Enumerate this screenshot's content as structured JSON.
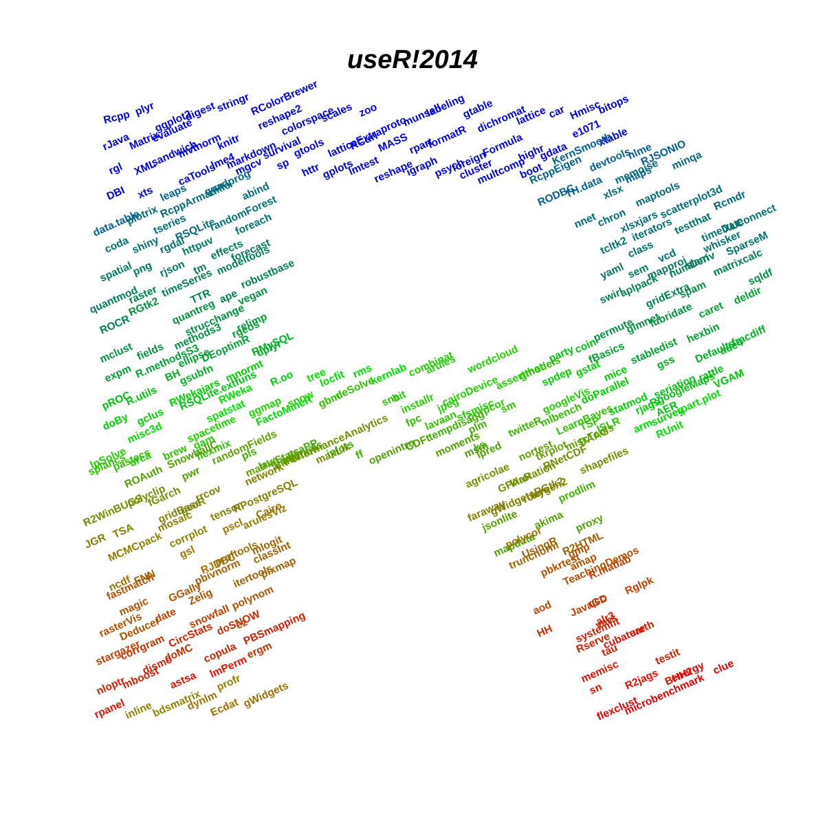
{
  "title": "useR!2014",
  "colors": {
    "blue": "#0000dd",
    "teal": "#007070",
    "green": "#00e000",
    "olive": "#808000",
    "brown": "#b05000",
    "red": "#e00000"
  },
  "words": [
    {
      "t": "Rcpp",
      "c": "#0000dd"
    },
    {
      "t": "plyr",
      "c": "#0000dd"
    },
    {
      "t": "ggplot2",
      "c": "#0000dd"
    },
    {
      "t": "digest",
      "c": "#0000dd"
    },
    {
      "t": "stringr",
      "c": "#0000dd"
    },
    {
      "t": "RColorBrewer",
      "c": "#0000dd"
    },
    {
      "t": "rJava",
      "c": "#0000dd"
    },
    {
      "t": "Matrix",
      "c": "#0000dd"
    },
    {
      "t": "evaluate",
      "c": "#0000dd"
    },
    {
      "t": "mvtnorm",
      "c": "#0000dd"
    },
    {
      "t": "knitr",
      "c": "#0000dd"
    },
    {
      "t": "reshape2",
      "c": "#0000dd"
    },
    {
      "t": "rgl",
      "c": "#0000dd"
    },
    {
      "t": "XML",
      "c": "#0000dd"
    },
    {
      "t": "sandwich",
      "c": "#0000dd"
    },
    {
      "t": "markdown",
      "c": "#0000dd"
    },
    {
      "t": "colorspace",
      "c": "#0000dd"
    },
    {
      "t": "scales",
      "c": "#0000dd"
    },
    {
      "t": "zoo",
      "c": "#0000dd"
    },
    {
      "t": "DBI",
      "c": "#0000dd"
    },
    {
      "t": "xts",
      "c": "#0000dd"
    },
    {
      "t": "caTools",
      "c": "#0000dd"
    },
    {
      "t": "lme4",
      "c": "#0000dd"
    },
    {
      "t": "survival",
      "c": "#0000dd"
    },
    {
      "t": "gtools",
      "c": "#0000dd"
    },
    {
      "t": "latticeExtra",
      "c": "#0000dd"
    },
    {
      "t": "RCurl",
      "c": "#0000dd"
    },
    {
      "t": "proto",
      "c": "#0000dd"
    },
    {
      "t": "munsell",
      "c": "#0000dd"
    },
    {
      "t": "labeling",
      "c": "#0000dd"
    },
    {
      "t": "gtable",
      "c": "#0000dd"
    },
    {
      "t": "dichromat",
      "c": "#0000dd"
    },
    {
      "t": "lattice",
      "c": "#0000dd"
    },
    {
      "t": "car",
      "c": "#0000dd"
    },
    {
      "t": "Hmisc",
      "c": "#0000dd"
    },
    {
      "t": "bitops",
      "c": "#0000dd"
    },
    {
      "t": "mgcv",
      "c": "#0000dd"
    },
    {
      "t": "sp",
      "c": "#0000dd"
    },
    {
      "t": "httr",
      "c": "#0000dd"
    },
    {
      "t": "gplots",
      "c": "#0000dd"
    },
    {
      "t": "lmtest",
      "c": "#0000dd"
    },
    {
      "t": "MASS",
      "c": "#0000dd"
    },
    {
      "t": "rpart",
      "c": "#0000dd"
    },
    {
      "t": "reshape",
      "c": "#0000dd"
    },
    {
      "t": "formatR",
      "c": "#0000dd"
    },
    {
      "t": "igraph",
      "c": "#0000dd"
    },
    {
      "t": "foreign",
      "c": "#0000dd"
    },
    {
      "t": "psych",
      "c": "#0000dd"
    },
    {
      "t": "Formula",
      "c": "#0000dd"
    },
    {
      "t": "cluster",
      "c": "#0000dd"
    },
    {
      "t": "highr",
      "c": "#0000dd"
    },
    {
      "t": "multcomp",
      "c": "#0000dd"
    },
    {
      "t": "gdata",
      "c": "#0000dd"
    },
    {
      "t": "e1071",
      "c": "#0000dd"
    },
    {
      "t": "boot",
      "c": "#0000dd"
    },
    {
      "t": "xtable",
      "c": "#0000dd"
    },
    {
      "t": "RcppEigen",
      "c": "#005f8f"
    },
    {
      "t": "KernSmooth",
      "c": "#005f8f"
    },
    {
      "t": "nlme",
      "c": "#005f8f"
    },
    {
      "t": "RODBC",
      "c": "#005f8f"
    },
    {
      "t": "devtools",
      "c": "#005f8f"
    },
    {
      "t": "TH.data",
      "c": "#005f8f"
    },
    {
      "t": "maps",
      "c": "#005f8f"
    },
    {
      "t": "RJSONIO",
      "c": "#005f8f"
    },
    {
      "t": "xlsx",
      "c": "#006a7a"
    },
    {
      "t": "memoise",
      "c": "#006a7a"
    },
    {
      "t": "minqa",
      "c": "#006a7a"
    },
    {
      "t": "nnet",
      "c": "#006a7a"
    },
    {
      "t": "chron",
      "c": "#006a7a"
    },
    {
      "t": "maptools",
      "c": "#006a7a"
    },
    {
      "t": "scatterplot3d",
      "c": "#006a7a"
    },
    {
      "t": "xlsxjars",
      "c": "#006a7a"
    },
    {
      "t": "Rcmdr",
      "c": "#006a7a"
    },
    {
      "t": "tcltk2",
      "c": "#007070"
    },
    {
      "t": "iterators",
      "c": "#007070"
    },
    {
      "t": "testthat",
      "c": "#007070"
    },
    {
      "t": "timeDate",
      "c": "#007070"
    },
    {
      "t": "XLConnect",
      "c": "#007070"
    },
    {
      "t": "class",
      "c": "#007070"
    },
    {
      "t": "vcd",
      "c": "#007070"
    },
    {
      "t": "slam",
      "c": "#007070"
    },
    {
      "t": "whisker",
      "c": "#007070"
    },
    {
      "t": "SparseM",
      "c": "#007070"
    },
    {
      "t": "data.table",
      "c": "#005f8f"
    },
    {
      "t": "leaps",
      "c": "#005f8f"
    },
    {
      "t": "RcppArmadillo",
      "c": "#006a7a"
    },
    {
      "t": "quadprog",
      "c": "#006a7a"
    },
    {
      "t": "plotrix",
      "c": "#006a7a"
    },
    {
      "t": "tseries",
      "c": "#006a7a"
    },
    {
      "t": "RSQLite",
      "c": "#006a7a"
    },
    {
      "t": "abind",
      "c": "#006a7a"
    },
    {
      "t": "coda",
      "c": "#007070"
    },
    {
      "t": "shiny",
      "c": "#007070"
    },
    {
      "t": "rgdal",
      "c": "#007070"
    },
    {
      "t": "randomForest",
      "c": "#007070"
    },
    {
      "t": "foreach",
      "c": "#007070"
    },
    {
      "t": "spatial",
      "c": "#007a60"
    },
    {
      "t": "httpuv",
      "c": "#007a60"
    },
    {
      "t": "effects",
      "c": "#007a60"
    },
    {
      "t": "forecast",
      "c": "#007a60"
    },
    {
      "t": "png",
      "c": "#007a60"
    },
    {
      "t": "rjson",
      "c": "#007a60"
    },
    {
      "t": "quantmod",
      "c": "#007a60"
    },
    {
      "t": "tm",
      "c": "#008050"
    },
    {
      "t": "modeltools",
      "c": "#008050"
    },
    {
      "t": "raster",
      "c": "#008050"
    },
    {
      "t": "timeSeries",
      "c": "#008050"
    },
    {
      "t": "robustbase",
      "c": "#008050"
    },
    {
      "t": "ROCR",
      "c": "#008050"
    },
    {
      "t": "TTR",
      "c": "#008050"
    },
    {
      "t": "ape",
      "c": "#008050"
    },
    {
      "t": "RGtk2",
      "c": "#009040"
    },
    {
      "t": "quantreg",
      "c": "#009040"
    },
    {
      "t": "strucchange",
      "c": "#009040"
    },
    {
      "t": "vegan",
      "c": "#009040"
    },
    {
      "t": "mclust",
      "c": "#009040"
    },
    {
      "t": "fields",
      "c": "#009040"
    },
    {
      "t": "methods3",
      "c": "#009040"
    },
    {
      "t": "rgeos",
      "c": "#00a030"
    },
    {
      "t": "relimp",
      "c": "#00a030"
    },
    {
      "t": "expm",
      "c": "#00a030"
    },
    {
      "t": "R.methodsS3",
      "c": "#00a030"
    },
    {
      "t": "ellipse",
      "c": "#00a030"
    },
    {
      "t": "DEoptimR",
      "c": "#00a030"
    },
    {
      "t": "RMySQL",
      "c": "#00b020"
    },
    {
      "t": "BH",
      "c": "#00b020"
    },
    {
      "t": "gsubfn",
      "c": "#00b020"
    },
    {
      "t": "dplyr",
      "c": "#00b020"
    },
    {
      "t": "pROC",
      "c": "#00c010"
    },
    {
      "t": "R.utils",
      "c": "#00c010"
    },
    {
      "t": "RSQLite.extfuns",
      "c": "#00c010"
    },
    {
      "t": "yaml",
      "c": "#007a60"
    },
    {
      "t": "sem",
      "c": "#007a60"
    },
    {
      "t": "mapproj",
      "c": "#007a60"
    },
    {
      "t": "numDeriv",
      "c": "#008050"
    },
    {
      "t": "matrixcalc",
      "c": "#008050"
    },
    {
      "t": "swirl",
      "c": "#008050"
    },
    {
      "t": "aplpack",
      "c": "#008050"
    },
    {
      "t": "gridExtra",
      "c": "#008050"
    },
    {
      "t": "spam",
      "c": "#009040"
    },
    {
      "t": "sqldf",
      "c": "#009040"
    },
    {
      "t": "permute",
      "c": "#009040"
    },
    {
      "t": "glmnet",
      "c": "#009040"
    },
    {
      "t": "lubridate",
      "c": "#009040"
    },
    {
      "t": "caret",
      "c": "#00a030"
    },
    {
      "t": "deldir",
      "c": "#00a030"
    },
    {
      "t": "hexbin",
      "c": "#00a030"
    },
    {
      "t": "fBasics",
      "c": "#00a030"
    },
    {
      "t": "stabledist",
      "c": "#00a030"
    },
    {
      "t": "gss",
      "c": "#00b020"
    },
    {
      "t": "Defaults",
      "c": "#00b020"
    },
    {
      "t": "ade4",
      "c": "#00b020"
    },
    {
      "t": "fracdiff",
      "c": "#00b020"
    },
    {
      "t": "rattle",
      "c": "#00c010"
    },
    {
      "t": "VGAM",
      "c": "#00c010"
    },
    {
      "t": "seriation",
      "c": "#00c010"
    },
    {
      "t": "RgoogleMaps",
      "c": "#00c010"
    },
    {
      "t": "AER",
      "c": "#00c010"
    },
    {
      "t": "coin",
      "c": "#00c010"
    },
    {
      "t": "party",
      "c": "#00c010"
    },
    {
      "t": "gstat",
      "c": "#00d000"
    },
    {
      "t": "spdep",
      "c": "#00d000"
    },
    {
      "t": "mice",
      "c": "#00d000"
    },
    {
      "t": "doParallel",
      "c": "#00d000"
    },
    {
      "t": "statmod",
      "c": "#00d000"
    },
    {
      "t": "rjags",
      "c": "#00d000"
    },
    {
      "t": "survey",
      "c": "#00d000"
    },
    {
      "t": "rpart.plot",
      "c": "#00e000"
    },
    {
      "t": "arm",
      "c": "#00e000"
    },
    {
      "t": "RUnit",
      "c": "#00e000"
    },
    {
      "t": "doBy",
      "c": "#00d000"
    },
    {
      "t": "gclus",
      "c": "#00d000"
    },
    {
      "t": "RWekajars",
      "c": "#00d000"
    },
    {
      "t": "mnormt",
      "c": "#00d000"
    },
    {
      "t": "R.oo",
      "c": "#00d000"
    },
    {
      "t": "tree",
      "c": "#00e000"
    },
    {
      "t": "misc3d",
      "c": "#00e000"
    },
    {
      "t": "RWeka",
      "c": "#00e000"
    },
    {
      "t": "spatstat",
      "c": "#00e000"
    },
    {
      "t": "FactoMineR",
      "c": "#00e000"
    },
    {
      "t": "locfit",
      "c": "#00e000"
    },
    {
      "t": "rms",
      "c": "#00e000"
    },
    {
      "t": "kernlab",
      "c": "#00e000"
    },
    {
      "t": "combinat",
      "c": "#20d000"
    },
    {
      "t": "arules",
      "c": "#20d000"
    },
    {
      "t": "wordcloud",
      "c": "#20d000"
    },
    {
      "t": "assertthat",
      "c": "#20d000"
    },
    {
      "t": "bit",
      "c": "#20d000"
    },
    {
      "t": "installr",
      "c": "#20d000"
    },
    {
      "t": "jpeg",
      "c": "#20d000"
    },
    {
      "t": "cairoDevice",
      "c": "#20d000"
    },
    {
      "t": "sfsmisc",
      "c": "#20d000"
    },
    {
      "t": "gmodels",
      "c": "#30c000"
    },
    {
      "t": "corpcor",
      "c": "#30c000"
    },
    {
      "t": "sm",
      "c": "#30c000"
    },
    {
      "t": "googleVis",
      "c": "#20d000"
    },
    {
      "t": "lpSolve",
      "c": "#20d000"
    },
    {
      "t": "urca",
      "c": "#20d000"
    },
    {
      "t": "spacetime",
      "c": "#20d000"
    },
    {
      "t": "gam",
      "c": "#20d000"
    },
    {
      "t": "ggmap",
      "c": "#20d000"
    },
    {
      "t": "snow",
      "c": "#20d000"
    },
    {
      "t": "gbm",
      "c": "#30c000"
    },
    {
      "t": "deSolve",
      "c": "#30c000"
    },
    {
      "t": "sna",
      "c": "#30c000"
    },
    {
      "t": "fpc",
      "c": "#30c000"
    },
    {
      "t": "lavaan",
      "c": "#30c000"
    },
    {
      "t": "tempdisagg",
      "c": "#40b000"
    },
    {
      "t": "plm",
      "c": "#40b000"
    },
    {
      "t": "ks",
      "c": "#40b000"
    },
    {
      "t": "twitteR",
      "c": "#40b000"
    },
    {
      "t": "mlbench",
      "c": "#30c000"
    },
    {
      "t": "LearnBayes",
      "c": "#30c000"
    },
    {
      "t": "TSP",
      "c": "#30c000"
    },
    {
      "t": "ISLR",
      "c": "#30c000"
    },
    {
      "t": "splancs",
      "c": "#30c000"
    },
    {
      "t": "pastecs",
      "c": "#30c000"
    },
    {
      "t": "brew",
      "c": "#30c000"
    },
    {
      "t": "flexmix",
      "c": "#30c000"
    },
    {
      "t": "pls",
      "c": "#40b000"
    },
    {
      "t": "lava",
      "c": "#40b000"
    },
    {
      "t": "intervals",
      "c": "#40b000"
    },
    {
      "t": "pcaPP",
      "c": "#40b000"
    },
    {
      "t": "iplots",
      "c": "#40b000"
    },
    {
      "t": "ff",
      "c": "#40b000"
    },
    {
      "t": "openintro",
      "c": "#50a000"
    },
    {
      "t": "CDFt",
      "c": "#50a000"
    },
    {
      "t": "moments",
      "c": "#50a000"
    },
    {
      "t": "msm",
      "c": "#50a000"
    },
    {
      "t": "ipred",
      "c": "#50a000"
    },
    {
      "t": "nortest",
      "c": "#60a000"
    },
    {
      "t": "tkrplot",
      "c": "#60a000"
    },
    {
      "t": "miscTools",
      "c": "#60a000"
    },
    {
      "t": "DAAG",
      "c": "#60a000"
    },
    {
      "t": "agricolae",
      "c": "#709000"
    },
    {
      "t": "GPArotation",
      "c": "#709000"
    },
    {
      "t": "klaR",
      "c": "#709000"
    },
    {
      "t": "RNetCDF",
      "c": "#709000"
    },
    {
      "t": "shapefiles",
      "c": "#709000"
    },
    {
      "t": "faraway",
      "c": "#808000"
    },
    {
      "t": "gWidgetsRGtk2",
      "c": "#808000"
    },
    {
      "t": "roxygen2",
      "c": "#808000"
    },
    {
      "t": "lars",
      "c": "#808000"
    },
    {
      "t": "prodlim",
      "c": "#40b000"
    },
    {
      "t": "jsonlite",
      "c": "#50a000"
    },
    {
      "t": "mapdata",
      "c": "#50a000"
    },
    {
      "t": "akima",
      "c": "#50a000"
    },
    {
      "t": "proxy",
      "c": "#50a000"
    },
    {
      "t": "ROAuth",
      "c": "#50a000"
    },
    {
      "t": "SnowballC",
      "c": "#50a000"
    },
    {
      "t": "pwr",
      "c": "#50a000"
    },
    {
      "t": "randomFields",
      "c": "#60a000"
    },
    {
      "t": "matrixStats",
      "c": "#60a000"
    },
    {
      "t": "animation",
      "c": "#60a000"
    },
    {
      "t": "PerformanceAnalytics",
      "c": "#709000"
    },
    {
      "t": "maxLik",
      "c": "#709000"
    },
    {
      "t": "R2WinBUGS",
      "c": "#709000"
    },
    {
      "t": "polyclip",
      "c": "#709000"
    },
    {
      "t": "fGarch",
      "c": "#709000"
    },
    {
      "t": "geoR",
      "c": "#709000"
    },
    {
      "t": "network",
      "c": "#808000"
    },
    {
      "t": "JGR",
      "c": "#808000"
    },
    {
      "t": "TSA",
      "c": "#808000"
    },
    {
      "t": "gridBase",
      "c": "#808000"
    },
    {
      "t": "rrcov",
      "c": "#808000"
    },
    {
      "t": "tensor",
      "c": "#808000"
    },
    {
      "t": "RPostgreSQL",
      "c": "#808000"
    },
    {
      "t": "arulesViz",
      "c": "#908000"
    },
    {
      "t": "MCMCpack",
      "c": "#908000"
    },
    {
      "t": "mosaic",
      "c": "#908000"
    },
    {
      "t": "corrplot",
      "c": "#908000"
    },
    {
      "t": "pscl",
      "c": "#a07000"
    },
    {
      "t": "Cairo",
      "c": "#a07000"
    },
    {
      "t": "ncdf",
      "c": "#a07000"
    },
    {
      "t": "gsl",
      "c": "#a07000"
    },
    {
      "t": "RJDBC",
      "c": "#a07000"
    },
    {
      "t": "proftools",
      "c": "#a07000"
    },
    {
      "t": "FNN",
      "c": "#a06000"
    },
    {
      "t": "pbivnorm",
      "c": "#a06000"
    },
    {
      "t": "itertools",
      "c": "#a06000"
    },
    {
      "t": "mlogit",
      "c": "#a06000"
    },
    {
      "t": "classInt",
      "c": "#a06000"
    },
    {
      "t": "pixmap",
      "c": "#a06000"
    },
    {
      "t": "fastmatch",
      "c": "#b05000"
    },
    {
      "t": "magic",
      "c": "#b05000"
    },
    {
      "t": "GGally",
      "c": "#b05000"
    },
    {
      "t": "Zelig",
      "c": "#b05000"
    },
    {
      "t": "polynom",
      "c": "#b05000"
    },
    {
      "t": "rasterVis",
      "c": "#b05000"
    },
    {
      "t": "Deducer",
      "c": "#b05000"
    },
    {
      "t": "ez",
      "c": "#c04000"
    },
    {
      "t": "date",
      "c": "#c04000"
    },
    {
      "t": "snowfall",
      "c": "#c04000"
    },
    {
      "t": "stargazer",
      "c": "#c04000"
    },
    {
      "t": "corrgram",
      "c": "#c03000"
    },
    {
      "t": "doSNOW",
      "c": "#c03000"
    },
    {
      "t": "doMC",
      "c": "#c03000"
    },
    {
      "t": "ergm",
      "c": "#c03000"
    },
    {
      "t": "nloptr",
      "c": "#d02000"
    },
    {
      "t": "CircStats",
      "c": "#d02000"
    },
    {
      "t": "copula",
      "c": "#d02000"
    },
    {
      "t": "mboost",
      "c": "#d02000"
    },
    {
      "t": "PBSmapping",
      "c": "#d02000"
    },
    {
      "t": "dismo",
      "c": "#d02000"
    },
    {
      "t": "astsa",
      "c": "#e01000"
    },
    {
      "t": "lmPerm",
      "c": "#e01000"
    },
    {
      "t": "rpanel",
      "c": "#e01000"
    },
    {
      "t": "inline",
      "c": "#908000"
    },
    {
      "t": "profr",
      "c": "#908000"
    },
    {
      "t": "bdsmatrix",
      "c": "#908000"
    },
    {
      "t": "dynlm",
      "c": "#a07000"
    },
    {
      "t": "Ecdat",
      "c": "#a07000"
    },
    {
      "t": "gWidgets",
      "c": "#a07000"
    },
    {
      "t": "polycor",
      "c": "#a07000"
    },
    {
      "t": "UsingR",
      "c": "#a06000"
    },
    {
      "t": "R2HTML",
      "c": "#a06000"
    },
    {
      "t": "truncnorm",
      "c": "#a06000"
    },
    {
      "t": "gmp",
      "c": "#b05000"
    },
    {
      "t": "amap",
      "c": "#b05000"
    },
    {
      "t": "pbkrtest",
      "c": "#b05000"
    },
    {
      "t": "TeachingDemos",
      "c": "#b05000"
    },
    {
      "t": "R.matlab",
      "c": "#c04000"
    },
    {
      "t": "aod",
      "c": "#c04000"
    },
    {
      "t": "Rglpk",
      "c": "#c04000"
    },
    {
      "t": "JavaGD",
      "c": "#c04000"
    },
    {
      "t": "qcc",
      "c": "#c03000"
    },
    {
      "t": "vars",
      "c": "#c03000"
    },
    {
      "t": "HH",
      "c": "#c03000"
    },
    {
      "t": "systemfit",
      "c": "#d02000"
    },
    {
      "t": "alr3",
      "c": "#d02000"
    },
    {
      "t": "earth",
      "c": "#d02000"
    },
    {
      "t": "Rserve",
      "c": "#d02000"
    },
    {
      "t": "tau",
      "c": "#d02000"
    },
    {
      "t": "testit",
      "c": "#d02000"
    },
    {
      "t": "cubature",
      "c": "#e01000"
    },
    {
      "t": "BHH2",
      "c": "#e01000"
    },
    {
      "t": "memisc",
      "c": "#e01000"
    },
    {
      "t": "sn",
      "c": "#e01000"
    },
    {
      "t": "R2jags",
      "c": "#e01000"
    },
    {
      "t": "energy",
      "c": "#e00000"
    },
    {
      "t": "clue",
      "c": "#e00000"
    },
    {
      "t": "flexclust",
      "c": "#e00000"
    },
    {
      "t": "microbenchmark",
      "c": "#e00000"
    }
  ]
}
